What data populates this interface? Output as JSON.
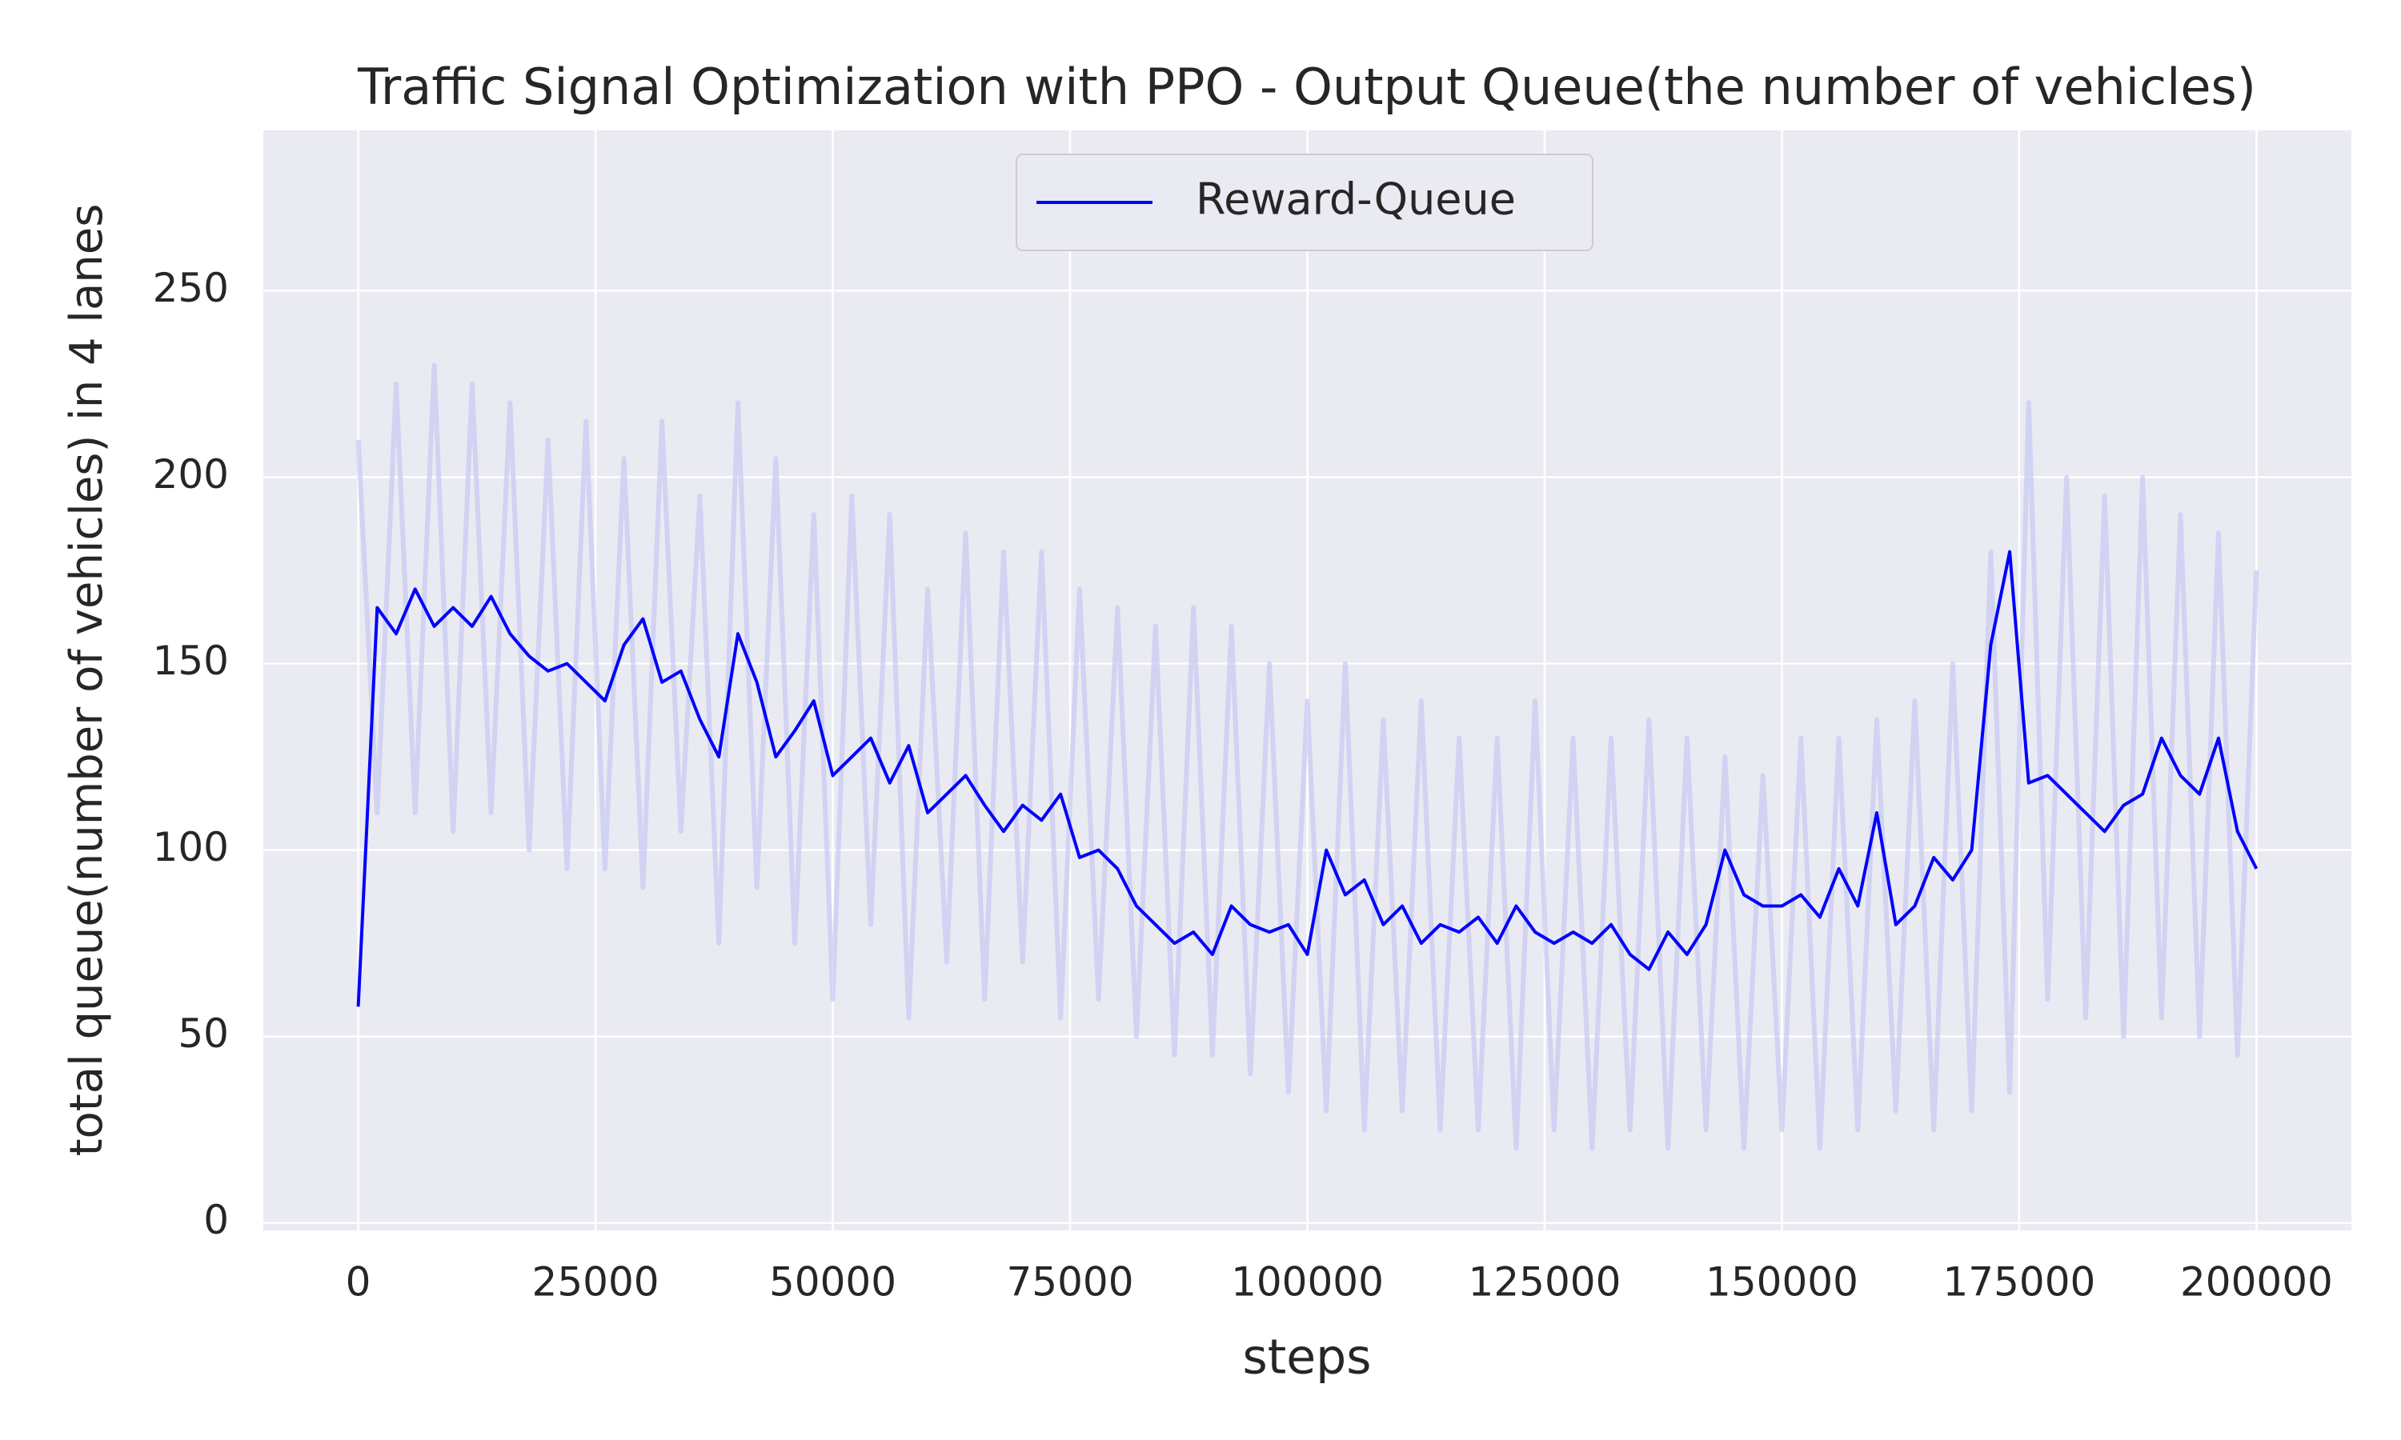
{
  "chart_data": {
    "type": "line",
    "title": "Traffic Signal Optimization with PPO - Output Queue(the number of vehicles)",
    "x_label": "steps",
    "y_label": "total queue(number of vehicles) in 4 lanes",
    "x": [
      0,
      2000,
      4000,
      6000,
      8000,
      10000,
      12000,
      14000,
      16000,
      18000,
      20000,
      22000,
      24000,
      26000,
      28000,
      30000,
      32000,
      34000,
      36000,
      38000,
      40000,
      42000,
      44000,
      46000,
      48000,
      50000,
      52000,
      54000,
      56000,
      58000,
      60000,
      62000,
      64000,
      66000,
      68000,
      70000,
      72000,
      74000,
      76000,
      78000,
      80000,
      82000,
      84000,
      86000,
      88000,
      90000,
      92000,
      94000,
      96000,
      98000,
      100000,
      102000,
      104000,
      106000,
      108000,
      110000,
      112000,
      114000,
      116000,
      118000,
      120000,
      122000,
      124000,
      126000,
      128000,
      130000,
      132000,
      134000,
      136000,
      138000,
      140000,
      142000,
      144000,
      146000,
      148000,
      150000,
      152000,
      154000,
      156000,
      158000,
      160000,
      162000,
      164000,
      166000,
      168000,
      170000,
      172000,
      174000,
      176000,
      178000,
      180000,
      182000,
      184000,
      186000,
      188000,
      190000,
      192000,
      194000,
      196000,
      198000,
      200000
    ],
    "series": [
      {
        "color": "#c9c9f3",
        "values": [
          210,
          110,
          225,
          110,
          230,
          105,
          225,
          110,
          220,
          100,
          210,
          95,
          215,
          95,
          205,
          90,
          215,
          105,
          195,
          75,
          220,
          90,
          205,
          75,
          190,
          60,
          195,
          80,
          190,
          55,
          170,
          70,
          185,
          60,
          180,
          70,
          180,
          55,
          170,
          60,
          165,
          50,
          160,
          45,
          165,
          45,
          160,
          40,
          150,
          35,
          140,
          30,
          150,
          25,
          135,
          30,
          140,
          25,
          130,
          25,
          130,
          20,
          140,
          25,
          130,
          20,
          130,
          25,
          135,
          20,
          130,
          25,
          125,
          20,
          120,
          25,
          130,
          20,
          130,
          25,
          135,
          30,
          140,
          25,
          150,
          30,
          180,
          35,
          220,
          60,
          200,
          55,
          195,
          50,
          200,
          55,
          190,
          50,
          185,
          45,
          175
        ]
      },
      {
        "name": "Reward-Queue",
        "color": "#0000ff",
        "values": [
          58,
          165,
          158,
          170,
          160,
          165,
          160,
          168,
          158,
          152,
          148,
          150,
          145,
          140,
          155,
          162,
          145,
          148,
          135,
          125,
          158,
          145,
          125,
          132,
          140,
          120,
          125,
          130,
          118,
          128,
          110,
          115,
          120,
          112,
          105,
          112,
          108,
          115,
          98,
          100,
          95,
          85,
          80,
          75,
          78,
          72,
          85,
          80,
          78,
          80,
          72,
          100,
          88,
          92,
          80,
          85,
          75,
          80,
          78,
          82,
          75,
          85,
          78,
          75,
          78,
          75,
          80,
          72,
          68,
          78,
          72,
          80,
          100,
          88,
          85,
          85,
          88,
          82,
          95,
          85,
          110,
          80,
          85,
          98,
          92,
          100,
          155,
          180,
          118,
          120,
          115,
          110,
          105,
          112,
          115,
          130,
          120,
          115,
          130,
          105,
          95
        ]
      }
    ],
    "xlim": [
      -10000,
      210000
    ],
    "ylim": [
      -2,
      293
    ],
    "xticks": [
      0,
      25000,
      50000,
      75000,
      100000,
      125000,
      150000,
      175000,
      200000
    ],
    "yticks": [
      0,
      50,
      100,
      150,
      200,
      250
    ],
    "grid": true,
    "legend": "upper center"
  }
}
